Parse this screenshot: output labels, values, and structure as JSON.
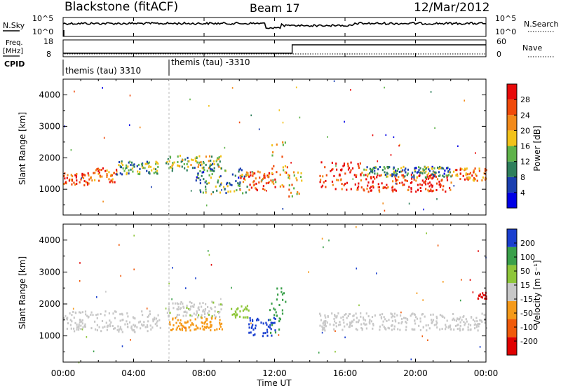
{
  "header": {
    "title": "Blackstone (fitACF)",
    "beam": "Beam 17",
    "date": "12/Mar/2012"
  },
  "noise_panel": {
    "left_label": "N.Sky",
    "right_label": "N.Search",
    "left_ticks": [
      "10^5",
      "10^0"
    ],
    "right_ticks": [
      "10^5",
      "10^0"
    ]
  },
  "freq_panel": {
    "left_label_line1": "Freq.",
    "left_label_line2": "[MHz]",
    "right_label": "Nave",
    "left_ticks": [
      "18",
      "8"
    ],
    "right_ticks": [
      "60",
      "0"
    ],
    "freq_step_time": "13:00"
  },
  "cpid": {
    "label": "CPID",
    "modes": [
      "themis (tau) 3310",
      "themis (tau) -3310"
    ]
  },
  "x_axis": {
    "label": "Time UT",
    "ticks": [
      "00:00",
      "04:00",
      "08:00",
      "12:00",
      "16:00",
      "20:00",
      "00:00"
    ]
  },
  "chart_data": [
    {
      "type": "heatmap",
      "parameter": "power",
      "x_units": "hours UT",
      "xlim": [
        0,
        24
      ],
      "ylabel": "Slant Range [km]",
      "ylim": [
        180,
        4500
      ],
      "yticks": [
        "1000",
        "2000",
        "3000",
        "4000"
      ],
      "colorbar": {
        "label": "Power [dB]",
        "ticks": [
          "4",
          "8",
          "12",
          "16",
          "20",
          "24",
          "28"
        ],
        "range": [
          0,
          30
        ],
        "colors": [
          "#0000e6",
          "#1a3fb0",
          "#2e7f5c",
          "#5fb34a",
          "#f2c21a",
          "#f28a1a",
          "#f04a0a",
          "#e80a0a"
        ]
      },
      "echo_bands": [
        {
          "t": [
            0.0,
            1.5
          ],
          "range": [
            1150,
            1550
          ],
          "value": 26
        },
        {
          "t": [
            1.5,
            3.0
          ],
          "range": [
            1250,
            1700
          ],
          "value": 22
        },
        {
          "t": [
            3.0,
            5.5
          ],
          "range": [
            1500,
            1950
          ],
          "value": 12
        },
        {
          "t": [
            5.8,
            9.0
          ],
          "range": [
            1600,
            2100
          ],
          "value": 14
        },
        {
          "t": [
            7.5,
            10.5
          ],
          "range": [
            900,
            1700
          ],
          "value": 10
        },
        {
          "t": [
            10.0,
            12.0
          ],
          "range": [
            1000,
            1600
          ],
          "value": 24
        },
        {
          "t": [
            11.7,
            12.7
          ],
          "range": [
            1100,
            2600
          ],
          "value": 20
        },
        {
          "t": [
            12.7,
            13.5
          ],
          "range": [
            800,
            1600
          ],
          "value": 18
        },
        {
          "t": [
            14.5,
            17.0
          ],
          "range": [
            1000,
            1900
          ],
          "value": 27
        },
        {
          "t": [
            17.0,
            22.0
          ],
          "range": [
            950,
            1500
          ],
          "value": 27
        },
        {
          "t": [
            17.0,
            22.0
          ],
          "range": [
            1400,
            1750
          ],
          "value": 10
        },
        {
          "t": [
            22.0,
            24.0
          ],
          "range": [
            1300,
            1700
          ],
          "value": 22
        }
      ]
    },
    {
      "type": "heatmap",
      "parameter": "velocity",
      "x_units": "hours UT",
      "xlim": [
        0,
        24
      ],
      "ylabel": "Slant Range [km]",
      "ylim": [
        180,
        4500
      ],
      "yticks": [
        "1000",
        "2000",
        "3000",
        "4000"
      ],
      "colorbar": {
        "label": "Velocity [m s⁻¹]",
        "ticks": [
          "200",
          "100",
          "50",
          "15",
          "-15",
          "-50",
          "-100",
          "-200"
        ],
        "range": [
          -250,
          250
        ],
        "colors": [
          "#e00000",
          "#f05a0a",
          "#f59a1a",
          "#c8c8c8",
          "#8ec63a",
          "#3aa04a",
          "#1a3fcf"
        ]
      },
      "echo_bands": [
        {
          "t": [
            0.0,
            5.5
          ],
          "range": [
            1150,
            1800
          ],
          "value": 0
        },
        {
          "t": [
            5.8,
            9.0
          ],
          "range": [
            1600,
            2100
          ],
          "value": 30
        },
        {
          "t": [
            6.0,
            9.0
          ],
          "range": [
            1200,
            1600
          ],
          "value": -60
        },
        {
          "t": [
            9.5,
            10.5
          ],
          "range": [
            1600,
            2000
          ],
          "value": 80
        },
        {
          "t": [
            10.5,
            12.0
          ],
          "range": [
            1000,
            1600
          ],
          "value": 220
        },
        {
          "t": [
            11.7,
            12.7
          ],
          "range": [
            1100,
            2600
          ],
          "value": 120
        },
        {
          "t": [
            14.5,
            24.0
          ],
          "range": [
            1200,
            1750
          ],
          "value": 0
        },
        {
          "t": [
            23.5,
            24.0
          ],
          "range": [
            2100,
            2400
          ],
          "value": -200
        }
      ]
    }
  ]
}
